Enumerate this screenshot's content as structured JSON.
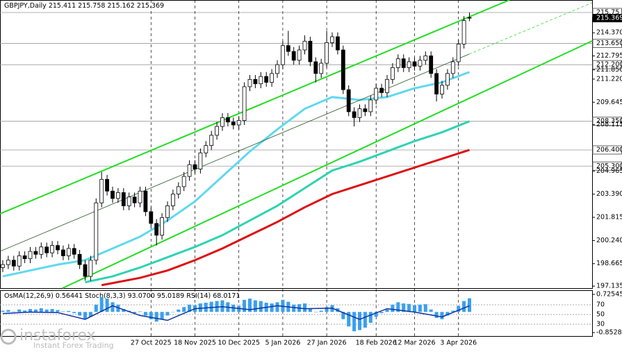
{
  "chart_data": [
    {
      "type": "candlestick",
      "symbol": "GBPJPY,Daily",
      "categories": [
        null,
        null,
        null,
        null,
        null,
        null,
        null,
        null,
        null,
        null,
        null,
        null,
        null,
        null,
        null,
        null,
        null,
        null,
        null,
        null,
        null,
        null,
        null,
        null,
        null,
        null,
        null,
        "27 Oct 2025",
        null,
        null,
        null,
        null,
        null,
        null,
        null,
        "18 Nov 2025",
        null,
        null,
        null,
        null,
        null,
        null,
        null,
        "10 Dec 2025",
        null,
        null,
        null,
        null,
        null,
        null,
        null,
        "5 Jan 2026",
        null,
        null,
        null,
        null,
        null,
        null,
        null,
        "27 Jan 2026",
        null,
        null,
        null,
        null,
        null,
        null,
        null,
        null,
        "18 Feb 2026",
        null,
        null,
        null,
        null,
        null,
        null,
        "12 Mar 2026",
        null,
        null,
        null,
        null,
        null,
        null,
        null,
        "3 Apr 2026",
        null,
        null
      ],
      "open": [
        198.4,
        198.6,
        198.9,
        198.5,
        199.2,
        199.0,
        199.5,
        199.3,
        199.8,
        199.4,
        199.9,
        199.6,
        199.2,
        199.7,
        199.3,
        198.6,
        197.8,
        198.9,
        202.8,
        204.4,
        203.6,
        203.1,
        203.5,
        202.6,
        203.2,
        202.8,
        203.6,
        202.2,
        201.4,
        200.6,
        201.8,
        202.6,
        203.4,
        203.9,
        204.6,
        205.4,
        205.1,
        206.2,
        206.7,
        207.4,
        208.0,
        208.6,
        208.3,
        208.1,
        208.4,
        210.7,
        211.2,
        210.9,
        211.4,
        211.0,
        211.6,
        212.2,
        213.5,
        213.1,
        212.5,
        213.2,
        213.8,
        212.4,
        211.6,
        212.3,
        213.7,
        214.1,
        213.2,
        210.5,
        209.0,
        208.6,
        209.2,
        209.0,
        209.8,
        210.6,
        210.3,
        211.2,
        212.0,
        212.6,
        212.0,
        212.4,
        212.1,
        212.5,
        212.8,
        211.6,
        210.2,
        210.8,
        211.6,
        212.4,
        213.6,
        215.411
      ],
      "high": [
        198.9,
        199.2,
        199.2,
        199.5,
        199.5,
        199.8,
        199.8,
        200.1,
        200.1,
        200.2,
        200.2,
        199.9,
        200.0,
        200.0,
        199.6,
        198.9,
        199.2,
        203.1,
        204.9,
        204.7,
        203.9,
        203.8,
        203.8,
        203.5,
        203.5,
        203.9,
        203.9,
        202.5,
        201.7,
        202.1,
        202.9,
        203.7,
        204.2,
        204.9,
        205.7,
        205.7,
        206.5,
        207.0,
        207.7,
        208.3,
        208.9,
        208.9,
        208.6,
        208.7,
        211.0,
        211.5,
        211.5,
        211.7,
        211.7,
        211.9,
        212.5,
        213.8,
        214.5,
        213.4,
        213.5,
        214.2,
        214.1,
        212.7,
        212.6,
        214.5,
        214.4,
        214.4,
        213.5,
        210.8,
        209.3,
        209.5,
        209.5,
        210.1,
        210.9,
        210.9,
        211.5,
        212.3,
        212.9,
        212.9,
        212.7,
        212.7,
        212.8,
        213.1,
        213.1,
        211.9,
        211.1,
        211.9,
        212.7,
        213.9,
        215.5,
        215.758
      ],
      "low": [
        198.1,
        198.3,
        198.2,
        198.2,
        198.7,
        198.7,
        199.0,
        199.0,
        199.1,
        199.1,
        199.3,
        198.9,
        198.9,
        199.0,
        198.3,
        197.5,
        197.5,
        198.6,
        202.5,
        203.3,
        202.8,
        202.8,
        202.3,
        202.3,
        202.5,
        202.5,
        201.9,
        201.1,
        199.9,
        200.3,
        201.5,
        202.3,
        203.1,
        203.6,
        204.3,
        204.8,
        204.8,
        205.9,
        206.4,
        207.1,
        207.7,
        208.0,
        207.8,
        207.8,
        208.1,
        210.4,
        210.6,
        210.6,
        210.7,
        210.7,
        211.3,
        211.9,
        212.8,
        212.2,
        212.2,
        212.9,
        212.1,
        211.0,
        211.3,
        212.0,
        213.4,
        212.9,
        210.2,
        208.7,
        208.0,
        208.3,
        208.7,
        208.7,
        209.5,
        210.0,
        210.0,
        210.9,
        211.7,
        211.7,
        211.7,
        211.8,
        211.8,
        212.2,
        211.3,
        209.7,
        209.9,
        210.5,
        211.3,
        212.1,
        213.3,
        215.162
      ],
      "close": [
        198.6,
        198.9,
        198.5,
        199.2,
        199.0,
        199.5,
        199.3,
        199.8,
        199.4,
        199.9,
        199.6,
        199.2,
        199.7,
        199.3,
        198.6,
        197.8,
        198.9,
        202.8,
        204.4,
        203.6,
        203.1,
        203.5,
        202.6,
        203.2,
        202.8,
        203.6,
        202.2,
        201.4,
        200.6,
        201.8,
        202.6,
        203.4,
        203.9,
        204.6,
        205.4,
        205.1,
        206.2,
        206.7,
        207.4,
        208.0,
        208.6,
        208.3,
        208.1,
        208.4,
        210.7,
        211.2,
        210.9,
        211.4,
        211.0,
        211.6,
        212.2,
        213.5,
        213.1,
        212.5,
        213.2,
        213.8,
        212.4,
        211.6,
        212.3,
        213.7,
        214.1,
        213.2,
        210.5,
        209.0,
        208.6,
        209.2,
        209.0,
        209.8,
        210.6,
        210.3,
        211.2,
        212.0,
        212.6,
        212.0,
        212.4,
        212.1,
        212.5,
        212.8,
        211.6,
        210.2,
        210.8,
        211.6,
        212.4,
        213.6,
        215.2,
        215.369
      ],
      "up_color": "#ffffff",
      "down_color": "#000000",
      "series": [
        {
          "color": "#5fd8f0",
          "x": [
            0,
            5,
            10,
            15,
            20,
            25,
            30,
            35,
            40,
            45,
            50,
            55,
            60,
            65,
            70,
            75,
            80,
            85
          ],
          "values": [
            197.8,
            198.2,
            198.6,
            198.9,
            199.7,
            200.5,
            201.6,
            202.9,
            204.6,
            206.3,
            207.8,
            209.2,
            210.0,
            209.8,
            210.0,
            210.6,
            211.0,
            211.7
          ]
        },
        {
          "color": "#2ed3b0",
          "x": [
            15,
            20,
            25,
            30,
            35,
            40,
            45,
            50,
            55,
            60,
            65,
            70,
            75,
            80,
            85
          ],
          "values": [
            197.4,
            197.8,
            198.4,
            199.1,
            199.8,
            200.6,
            201.6,
            202.6,
            203.8,
            205.0,
            205.6,
            206.3,
            207.0,
            207.6,
            208.35
          ]
        },
        {
          "color": "#dd1111",
          "x": [
            18,
            25,
            30,
            35,
            40,
            45,
            50,
            55,
            60,
            65,
            70,
            75,
            80,
            85
          ],
          "values": [
            197.2,
            197.7,
            198.2,
            198.9,
            199.7,
            200.6,
            201.5,
            202.5,
            203.4,
            204.0,
            204.6,
            205.2,
            205.8,
            206.4
          ]
        }
      ],
      "ylim": [
        197.0,
        216.6
      ],
      "yticks": [
        {
          "value": 215.75,
          "label": "215.75",
          "box": "level"
        },
        {
          "value": 215.369,
          "label": "215.369",
          "box": "price"
        },
        {
          "value": 214.37,
          "label": "214.370"
        },
        {
          "value": 213.65,
          "label": "213.650",
          "box": "level"
        },
        {
          "value": 212.795,
          "label": "212.795"
        },
        {
          "value": 212.2,
          "label": "212.200",
          "box": "level"
        },
        {
          "value": 211.85,
          "label": "211.850"
        },
        {
          "value": 211.22,
          "label": "211.220"
        },
        {
          "value": 209.645,
          "label": "209.645"
        },
        {
          "value": 208.35,
          "label": "208.350",
          "box": "level"
        },
        {
          "value": 208.115,
          "label": "208.115"
        },
        {
          "value": 206.4,
          "label": "206.400",
          "box": "level"
        },
        {
          "value": 205.3,
          "label": "205.300",
          "box": "level"
        },
        {
          "value": 204.965,
          "label": "204.965"
        },
        {
          "value": 203.39,
          "label": "203.390"
        },
        {
          "value": 201.815,
          "label": "201.815"
        },
        {
          "value": 200.24,
          "label": "200.240"
        },
        {
          "value": 198.665,
          "label": "198.665"
        },
        {
          "value": 197.135,
          "label": "197.135"
        }
      ]
    },
    {
      "type": "osma",
      "title_osma": "OsMA(12,26,9)",
      "title_stoch": "Stoch(8,3,3)",
      "stoch_values": [
        "93.0700",
        "95.0189"
      ],
      "title_rsi": "RSI(14)",
      "values": [
        0.05,
        0.08,
        0.02,
        0.1,
        0.06,
        0.12,
        0.1,
        0.15,
        0.1,
        0.12,
        0.08,
        0.02,
        0.04,
        -0.05,
        -0.15,
        -0.3,
        -0.2,
        0.3,
        0.62,
        0.55,
        0.4,
        0.3,
        0.12,
        0.05,
        -0.05,
        0.02,
        -0.15,
        -0.3,
        -0.4,
        -0.3,
        -0.15,
        0,
        0.1,
        0.2,
        0.3,
        0.28,
        0.35,
        0.38,
        0.42,
        0.45,
        0.48,
        0.4,
        0.3,
        0.25,
        0.5,
        0.55,
        0.48,
        0.45,
        0.38,
        0.35,
        0.4,
        0.5,
        0.42,
        0.3,
        0.32,
        0.35,
        0.15,
        0,
        0.05,
        0.2,
        0.28,
        0.15,
        -0.3,
        -0.6,
        -0.8,
        -0.75,
        -0.65,
        -0.45,
        -0.2,
        -0.05,
        0.1,
        0.3,
        0.4,
        0.35,
        0.33,
        0.28,
        0.3,
        0.32,
        0.1,
        -0.25,
        -0.3,
        -0.15,
        0.05,
        0.25,
        0.45,
        0.56441
      ],
      "color": "#3aa0ee",
      "ylim": [
        -0.85281,
        0.72545
      ],
      "yticks": [
        0.72545,
        -0.85281
      ],
      "rsi": {
        "color": "#1030a0",
        "x": [
          0,
          5,
          10,
          15,
          20,
          25,
          30,
          35,
          40,
          45,
          50,
          55,
          60,
          65,
          70,
          75,
          80,
          85
        ],
        "values": [
          52,
          55,
          54,
          40,
          68,
          48,
          38,
          62,
          66,
          60,
          68,
          62,
          63,
          40,
          62,
          55,
          45,
          68.0171
        ]
      },
      "rsi_lim": [
        0,
        100
      ],
      "rsi_ticks": [
        70,
        50,
        30
      ]
    }
  ],
  "branding": {
    "name": "instaforex",
    "tagline": "Instant Forex Trading"
  }
}
